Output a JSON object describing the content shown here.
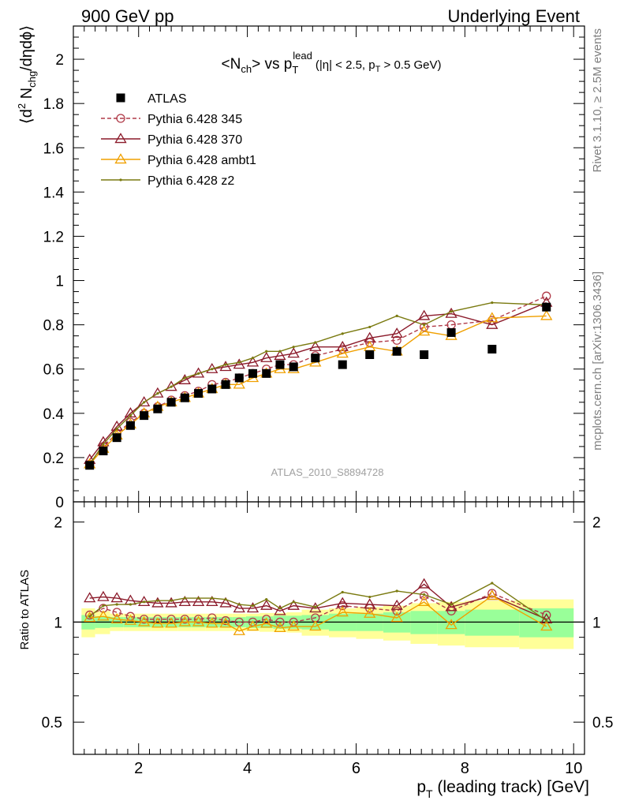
{
  "header": {
    "left": "900 GeV pp",
    "right": "Underlying Event"
  },
  "side_text": {
    "upper": "Rivet 3.1.10, ≥ 2.5M events",
    "lower": "mcplots.cern.ch [arXiv:1306.3436]"
  },
  "watermark": "ATLAS_2010_S8894728",
  "chart_data": [
    {
      "type": "scatter",
      "panel": "main",
      "title": "<N_ch> vs p_T^lead (|η| < 2.5, p_T > 0.5 GeV)",
      "title_parts": {
        "main": "<N",
        "main_sub": "ch",
        "vs": "> vs p",
        "vs_sub": "T",
        "vs_sup": "lead",
        "cuts": "(|η| < 2.5, p",
        "cuts_sub": "T",
        "cuts_end": " > 0.5 GeV)"
      },
      "ylabel": "⟨d² N_chg/dηdϕ⟩",
      "ylabel_parts": {
        "pre": "⟨d",
        "sup": "2",
        "mid": " N",
        "sub": "chg",
        "post": "/dηdϕ⟩"
      },
      "xlim": [
        0.8,
        10.2
      ],
      "ylim": [
        0,
        2.15
      ],
      "yticks": [
        0,
        0.2,
        0.4,
        0.6,
        0.8,
        1,
        1.2,
        1.4,
        1.6,
        1.8,
        2
      ],
      "ytick_labels": [
        "0",
        "0.2",
        "0.4",
        "0.6",
        "0.8",
        "1",
        "1.2",
        "1.4",
        "1.6",
        "1.8",
        "2"
      ],
      "legend_position": "top-left",
      "x": [
        1.1,
        1.35,
        1.6,
        1.85,
        2.1,
        2.35,
        2.6,
        2.85,
        3.1,
        3.35,
        3.6,
        3.85,
        4.1,
        4.35,
        4.6,
        4.85,
        5.25,
        5.75,
        6.25,
        6.75,
        7.25,
        7.75,
        8.5,
        9.5
      ],
      "series": [
        {
          "name": "ATLAS",
          "marker": "square-filled",
          "color": "#000000",
          "values": [
            0.165,
            0.23,
            0.29,
            0.345,
            0.39,
            0.42,
            0.45,
            0.47,
            0.49,
            0.51,
            0.53,
            0.56,
            0.58,
            0.58,
            0.62,
            0.61,
            0.65,
            0.62,
            0.665,
            0.68,
            0.665,
            0.765,
            0.69,
            0.88
          ]
        },
        {
          "name": "Pythia 6.428 345",
          "marker": "circle-open",
          "line": "dashed",
          "color": "#b03a48",
          "values": [
            0.17,
            0.25,
            0.31,
            0.36,
            0.4,
            0.43,
            0.46,
            0.48,
            0.5,
            0.53,
            0.54,
            0.56,
            0.58,
            0.6,
            0.62,
            0.62,
            0.66,
            0.69,
            0.72,
            0.73,
            0.79,
            0.8,
            0.82,
            0.93
          ]
        },
        {
          "name": "Pythia 6.428 370",
          "marker": "triangle-open",
          "line": "solid",
          "color": "#8b1a2a",
          "values": [
            0.19,
            0.27,
            0.34,
            0.4,
            0.45,
            0.49,
            0.52,
            0.55,
            0.58,
            0.6,
            0.61,
            0.62,
            0.63,
            0.65,
            0.66,
            0.67,
            0.7,
            0.7,
            0.74,
            0.76,
            0.84,
            0.85,
            0.8,
            0.9
          ]
        },
        {
          "name": "Pythia 6.428 ambt1",
          "marker": "triangle-open",
          "line": "solid",
          "color": "#f0a000",
          "values": [
            0.17,
            0.24,
            0.3,
            0.35,
            0.4,
            0.43,
            0.45,
            0.47,
            0.49,
            0.51,
            0.53,
            0.53,
            0.56,
            0.58,
            0.6,
            0.6,
            0.63,
            0.67,
            0.7,
            0.68,
            0.77,
            0.75,
            0.83,
            0.84
          ]
        },
        {
          "name": "Pythia 6.428 z2",
          "marker": "dot",
          "line": "solid",
          "color": "#7a7a10",
          "values": [
            0.17,
            0.26,
            0.33,
            0.39,
            0.45,
            0.49,
            0.52,
            0.56,
            0.58,
            0.6,
            0.62,
            0.63,
            0.65,
            0.68,
            0.68,
            0.7,
            0.72,
            0.76,
            0.79,
            0.84,
            0.8,
            0.86,
            0.9,
            0.89
          ]
        }
      ]
    },
    {
      "type": "scatter",
      "panel": "ratio",
      "ylabel": "Ratio to ATLAS",
      "xlabel": "p_T (leading track) [GeV]",
      "xlabel_parts": {
        "pre": "p",
        "sub": "T",
        "post": " (leading track) [GeV]"
      },
      "xlim": [
        0.8,
        10.2
      ],
      "ylim": [
        0.4,
        2.3
      ],
      "log_y": true,
      "xticks": [
        2,
        4,
        6,
        8,
        10
      ],
      "xtick_labels": [
        "2",
        "4",
        "6",
        "8",
        "10"
      ],
      "yticks": [
        0.5,
        1,
        2
      ],
      "ytick_labels": [
        "0.5",
        "1",
        "2"
      ],
      "bands": {
        "x_edges": [
          0.95,
          1.2,
          1.475,
          1.725,
          1.975,
          2.225,
          2.475,
          2.725,
          2.975,
          3.225,
          3.475,
          3.725,
          3.975,
          4.225,
          4.475,
          4.725,
          5.0,
          5.5,
          6.0,
          6.5,
          7.0,
          7.5,
          8.0,
          9.0,
          10.0
        ],
        "green_half": [
          0.05,
          0.04,
          0.035,
          0.035,
          0.035,
          0.035,
          0.035,
          0.035,
          0.035,
          0.035,
          0.035,
          0.035,
          0.04,
          0.04,
          0.045,
          0.045,
          0.05,
          0.06,
          0.06,
          0.07,
          0.08,
          0.08,
          0.09,
          0.1
        ],
        "yellow_half": [
          0.1,
          0.08,
          0.06,
          0.06,
          0.06,
          0.06,
          0.06,
          0.06,
          0.06,
          0.06,
          0.06,
          0.06,
          0.06,
          0.065,
          0.065,
          0.07,
          0.09,
          0.1,
          0.11,
          0.12,
          0.14,
          0.15,
          0.16,
          0.17
        ]
      },
      "x": [
        1.1,
        1.35,
        1.6,
        1.85,
        2.1,
        2.35,
        2.6,
        2.85,
        3.1,
        3.35,
        3.6,
        3.85,
        4.1,
        4.35,
        4.6,
        4.85,
        5.25,
        5.75,
        6.25,
        6.75,
        7.25,
        7.75,
        8.5,
        9.5
      ],
      "series": [
        {
          "name": "Pythia 6.428 345",
          "marker": "circle-open",
          "line": "dashed",
          "color": "#b03a48",
          "values": [
            1.05,
            1.1,
            1.07,
            1.04,
            1.02,
            1.02,
            1.02,
            1.02,
            1.02,
            1.03,
            1.01,
            1.0,
            1.0,
            1.02,
            1.0,
            1.0,
            1.03,
            1.12,
            1.1,
            1.08,
            1.2,
            1.08,
            1.22,
            1.05
          ]
        },
        {
          "name": "Pythia 6.428 370",
          "marker": "triangle-open",
          "line": "solid",
          "color": "#8b1a2a",
          "values": [
            1.18,
            1.19,
            1.18,
            1.16,
            1.15,
            1.14,
            1.14,
            1.15,
            1.15,
            1.15,
            1.14,
            1.1,
            1.1,
            1.12,
            1.08,
            1.12,
            1.1,
            1.14,
            1.13,
            1.12,
            1.3,
            1.11,
            1.2,
            1.02
          ]
        },
        {
          "name": "Pythia 6.428 ambt1",
          "marker": "triangle-open",
          "line": "solid",
          "color": "#f0a000",
          "values": [
            1.03,
            1.04,
            1.02,
            1.01,
            1.0,
            0.99,
            0.99,
            1.0,
            1.0,
            0.99,
            0.99,
            0.94,
            0.97,
            0.99,
            0.96,
            0.97,
            0.97,
            1.07,
            1.06,
            1.03,
            1.15,
            0.98,
            1.2,
            0.97
          ]
        },
        {
          "name": "Pythia 6.428 z2",
          "marker": "dot",
          "line": "solid",
          "color": "#7a7a10",
          "values": [
            1.04,
            1.12,
            1.13,
            1.13,
            1.15,
            1.16,
            1.16,
            1.18,
            1.18,
            1.18,
            1.17,
            1.13,
            1.12,
            1.17,
            1.1,
            1.15,
            1.11,
            1.23,
            1.19,
            1.24,
            1.21,
            1.13,
            1.31,
            1.01
          ]
        }
      ]
    }
  ]
}
